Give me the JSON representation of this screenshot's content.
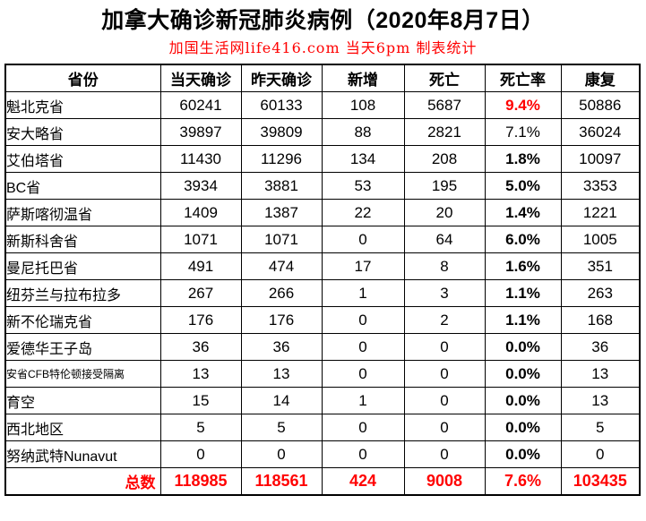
{
  "colors": {
    "accent_red": "#ff0000",
    "border": "#000000",
    "background": "#ffffff"
  },
  "chart_data": {
    "type": "table",
    "title": "加拿大确诊新冠肺炎病例（2020年8月7日）",
    "subtitle": "加国生活网life416.com 当天6pm 制表统计",
    "columns": [
      "省份",
      "当天确诊",
      "昨天确诊",
      "新增",
      "死亡",
      "死亡率",
      "康复"
    ],
    "rows": [
      {
        "province": "魁北克省",
        "today": "60241",
        "yesterday": "60133",
        "new": "108",
        "deaths": "5687",
        "death_rate": "9.4%",
        "recovered": "50886",
        "rate_style": "red-bold",
        "small": false
      },
      {
        "province": "安大略省",
        "today": "39897",
        "yesterday": "39809",
        "new": "88",
        "deaths": "2821",
        "death_rate": "7.1%",
        "recovered": "36024",
        "rate_style": "normal",
        "small": false
      },
      {
        "province": "艾伯塔省",
        "today": "11430",
        "yesterday": "11296",
        "new": "134",
        "deaths": "208",
        "death_rate": "1.8%",
        "recovered": "10097",
        "rate_style": "bold",
        "small": false
      },
      {
        "province": "BC省",
        "today": "3934",
        "yesterday": "3881",
        "new": "53",
        "deaths": "195",
        "death_rate": "5.0%",
        "recovered": "3353",
        "rate_style": "bold",
        "small": false
      },
      {
        "province": "萨斯喀彻温省",
        "today": "1409",
        "yesterday": "1387",
        "new": "22",
        "deaths": "20",
        "death_rate": "1.4%",
        "recovered": "1221",
        "rate_style": "bold",
        "small": false
      },
      {
        "province": "新斯科舍省",
        "today": "1071",
        "yesterday": "1071",
        "new": "0",
        "deaths": "64",
        "death_rate": "6.0%",
        "recovered": "1005",
        "rate_style": "bold",
        "small": false
      },
      {
        "province": "曼尼托巴省",
        "today": "491",
        "yesterday": "474",
        "new": "17",
        "deaths": "8",
        "death_rate": "1.6%",
        "recovered": "351",
        "rate_style": "bold",
        "small": false
      },
      {
        "province": "纽芬兰与拉布拉多",
        "today": "267",
        "yesterday": "266",
        "new": "1",
        "deaths": "3",
        "death_rate": "1.1%",
        "recovered": "263",
        "rate_style": "bold",
        "small": false
      },
      {
        "province": "新不伦瑞克省",
        "today": "176",
        "yesterday": "176",
        "new": "0",
        "deaths": "2",
        "death_rate": "1.1%",
        "recovered": "168",
        "rate_style": "bold",
        "small": false
      },
      {
        "province": "爱德华王子岛",
        "today": "36",
        "yesterday": "36",
        "new": "0",
        "deaths": "0",
        "death_rate": "0.0%",
        "recovered": "36",
        "rate_style": "bold",
        "small": false
      },
      {
        "province": "安省CFB特伦顿接受隔离",
        "today": "13",
        "yesterday": "13",
        "new": "0",
        "deaths": "0",
        "death_rate": "0.0%",
        "recovered": "13",
        "rate_style": "bold",
        "small": true
      },
      {
        "province": "育空",
        "today": "15",
        "yesterday": "14",
        "new": "1",
        "deaths": "0",
        "death_rate": "0.0%",
        "recovered": "13",
        "rate_style": "bold",
        "small": false
      },
      {
        "province": "西北地区",
        "today": "5",
        "yesterday": "5",
        "new": "0",
        "deaths": "0",
        "death_rate": "0.0%",
        "recovered": "5",
        "rate_style": "bold",
        "small": false
      },
      {
        "province": "努纳武特Nunavut",
        "today": "0",
        "yesterday": "0",
        "new": "0",
        "deaths": "0",
        "death_rate": "0.0%",
        "recovered": "0",
        "rate_style": "bold",
        "small": false
      }
    ],
    "total": {
      "label": "总数",
      "today": "118985",
      "yesterday": "118561",
      "new": "424",
      "deaths": "9008",
      "death_rate": "7.6%",
      "recovered": "103435"
    }
  }
}
